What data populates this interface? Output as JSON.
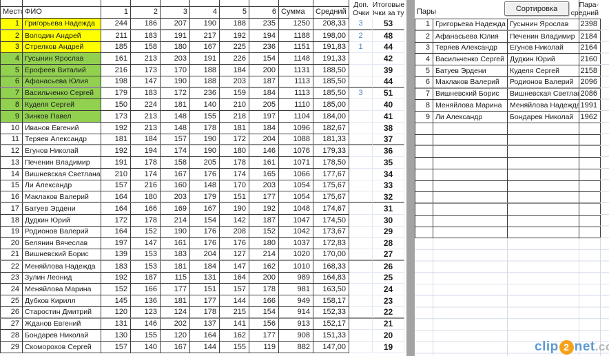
{
  "colors": {
    "highlight_top3": "#ffff00",
    "highlight_top9": "#92d050",
    "bonus_points": "#4f81bd",
    "separator_band": "#a3a3a3",
    "watermark_blue": "#5b9bd5",
    "watermark_orange": "#f7a11a",
    "watermark_gray": "#b5b5b5"
  },
  "left_table": {
    "headers": {
      "place": "Место",
      "name": "ФИО",
      "games": [
        "1",
        "2",
        "3",
        "4",
        "5",
        "6"
      ],
      "sum": "Сумма",
      "avg": "Средний",
      "bonus_line1": "Доп.",
      "bonus_line2": "Очки",
      "total_line1": "Итоговые",
      "total_line2": "Очки за тур"
    },
    "rows": [
      {
        "place": "1",
        "name": "Григорьева Надежда",
        "g": [
          "244",
          "186",
          "207",
          "190",
          "188",
          "235"
        ],
        "sum": "1250",
        "avg": "208,33",
        "dop": "3",
        "total": "53",
        "hl": "top3"
      },
      {
        "place": "2",
        "name": "Володин Андрей",
        "g": [
          "211",
          "183",
          "191",
          "217",
          "192",
          "194"
        ],
        "sum": "1188",
        "avg": "198,00",
        "dop": "2",
        "total": "48",
        "hl": "top3"
      },
      {
        "place": "3",
        "name": "Стрелков Андрей",
        "g": [
          "185",
          "158",
          "180",
          "167",
          "225",
          "236"
        ],
        "sum": "1151",
        "avg": "191,83",
        "dop": "1",
        "total": "44",
        "hl": "top3"
      },
      {
        "place": "4",
        "name": "Гусынин Ярослав",
        "g": [
          "161",
          "213",
          "203",
          "191",
          "226",
          "154"
        ],
        "sum": "1148",
        "avg": "191,33",
        "dop": "",
        "total": "42",
        "hl": "top9"
      },
      {
        "place": "5",
        "name": "Ерофеев Виталий",
        "g": [
          "216",
          "173",
          "170",
          "188",
          "184",
          "200"
        ],
        "sum": "1131",
        "avg": "188,50",
        "dop": "",
        "total": "39",
        "hl": "top9"
      },
      {
        "place": "6",
        "name": "Афанасьева Юлия",
        "g": [
          "198",
          "147",
          "190",
          "188",
          "203",
          "187"
        ],
        "sum": "1113",
        "avg": "185,50",
        "dop": "",
        "total": "44",
        "hl": "top9"
      },
      {
        "place": "7",
        "name": "Васильченко Сергей",
        "g": [
          "179",
          "183",
          "172",
          "236",
          "159",
          "184"
        ],
        "sum": "1113",
        "avg": "185,50",
        "dop": "3",
        "total": "51",
        "hl": "top9"
      },
      {
        "place": "8",
        "name": "Куделя Сергей",
        "g": [
          "150",
          "224",
          "181",
          "140",
          "210",
          "205"
        ],
        "sum": "1110",
        "avg": "185,00",
        "dop": "",
        "total": "40",
        "hl": "top9"
      },
      {
        "place": "9",
        "name": "Зинков Павел",
        "g": [
          "173",
          "213",
          "148",
          "155",
          "218",
          "197"
        ],
        "sum": "1104",
        "avg": "184,00",
        "dop": "",
        "total": "41",
        "hl": "top9"
      },
      {
        "place": "10",
        "name": "Иванов Евгений",
        "g": [
          "192",
          "213",
          "148",
          "178",
          "181",
          "184"
        ],
        "sum": "1096",
        "avg": "182,67",
        "dop": "",
        "total": "38",
        "hl": null
      },
      {
        "place": "11",
        "name": "Теряев Александр",
        "g": [
          "181",
          "184",
          "157",
          "190",
          "172",
          "204"
        ],
        "sum": "1088",
        "avg": "181,33",
        "dop": "",
        "total": "37",
        "hl": null
      },
      {
        "place": "12",
        "name": "Егунов Николай",
        "g": [
          "192",
          "194",
          "174",
          "190",
          "180",
          "146"
        ],
        "sum": "1076",
        "avg": "179,33",
        "dop": "",
        "total": "36",
        "hl": null
      },
      {
        "place": "13",
        "name": "Печенин Владимир",
        "g": [
          "191",
          "178",
          "158",
          "205",
          "178",
          "161"
        ],
        "sum": "1071",
        "avg": "178,50",
        "dop": "",
        "total": "35",
        "hl": null
      },
      {
        "place": "14",
        "name": "Вишневская Светлана",
        "g": [
          "210",
          "174",
          "167",
          "176",
          "174",
          "165"
        ],
        "sum": "1066",
        "avg": "177,67",
        "dop": "",
        "total": "34",
        "hl": null
      },
      {
        "place": "15",
        "name": "Ли Александр",
        "g": [
          "157",
          "216",
          "160",
          "148",
          "170",
          "203"
        ],
        "sum": "1054",
        "avg": "175,67",
        "dop": "",
        "total": "33",
        "hl": null
      },
      {
        "place": "16",
        "name": "Маклаков Валерий",
        "g": [
          "164",
          "180",
          "203",
          "179",
          "151",
          "177"
        ],
        "sum": "1054",
        "avg": "175,67",
        "dop": "",
        "total": "32",
        "hl": null
      },
      {
        "place": "17",
        "name": "Батуев Эрдени",
        "g": [
          "164",
          "166",
          "169",
          "167",
          "190",
          "192"
        ],
        "sum": "1048",
        "avg": "174,67",
        "dop": "",
        "total": "31",
        "hl": null
      },
      {
        "place": "18",
        "name": "Дудкин Юрий",
        "g": [
          "172",
          "178",
          "214",
          "154",
          "142",
          "187"
        ],
        "sum": "1047",
        "avg": "174,50",
        "dop": "",
        "total": "30",
        "hl": null
      },
      {
        "place": "19",
        "name": "Родионов Валерий",
        "g": [
          "164",
          "152",
          "190",
          "176",
          "208",
          "152"
        ],
        "sum": "1042",
        "avg": "173,67",
        "dop": "",
        "total": "29",
        "hl": null
      },
      {
        "place": "20",
        "name": "Белянин Вячеслав",
        "g": [
          "197",
          "147",
          "161",
          "176",
          "176",
          "180"
        ],
        "sum": "1037",
        "avg": "172,83",
        "dop": "",
        "total": "28",
        "hl": null
      },
      {
        "place": "21",
        "name": "Вишневский Борис",
        "g": [
          "139",
          "153",
          "183",
          "204",
          "127",
          "214"
        ],
        "sum": "1020",
        "avg": "170,00",
        "dop": "",
        "total": "27",
        "hl": null
      },
      {
        "place": "22",
        "name": "Меняйлова Надежда",
        "g": [
          "183",
          "153",
          "181",
          "184",
          "147",
          "162"
        ],
        "sum": "1010",
        "avg": "168,33",
        "dop": "",
        "total": "26",
        "hl": null
      },
      {
        "place": "23",
        "name": "Зулин Леонид",
        "g": [
          "192",
          "187",
          "115",
          "131",
          "164",
          "200"
        ],
        "sum": "989",
        "avg": "164,83",
        "dop": "",
        "total": "25",
        "hl": null
      },
      {
        "place": "24",
        "name": "Меняйлова Марина",
        "g": [
          "152",
          "166",
          "177",
          "151",
          "157",
          "178"
        ],
        "sum": "981",
        "avg": "163,50",
        "dop": "",
        "total": "24",
        "hl": null
      },
      {
        "place": "25",
        "name": "Дубков Кирилл",
        "g": [
          "145",
          "136",
          "181",
          "177",
          "144",
          "166"
        ],
        "sum": "949",
        "avg": "158,17",
        "dop": "",
        "total": "23",
        "hl": null
      },
      {
        "place": "26",
        "name": "Старостин Дмитрий",
        "g": [
          "120",
          "123",
          "124",
          "178",
          "215",
          "154"
        ],
        "sum": "914",
        "avg": "152,33",
        "dop": "",
        "total": "22",
        "hl": null
      },
      {
        "place": "27",
        "name": "Жданов Евгений",
        "g": [
          "131",
          "146",
          "202",
          "137",
          "141",
          "156"
        ],
        "sum": "913",
        "avg": "152,17",
        "dop": "",
        "total": "21",
        "hl": null
      },
      {
        "place": "28",
        "name": "Бондарев Николай",
        "g": [
          "130",
          "155",
          "120",
          "164",
          "162",
          "177"
        ],
        "sum": "908",
        "avg": "151,33",
        "dop": "",
        "total": "20",
        "hl": null
      },
      {
        "place": "29",
        "name": "Скоморохов Сергей",
        "g": [
          "157",
          "140",
          "167",
          "144",
          "155",
          "119"
        ],
        "sum": "882",
        "avg": "147,00",
        "dop": "",
        "total": "19",
        "hl": null
      }
    ]
  },
  "right_table": {
    "header": {
      "pairs_label": "Пары",
      "sort_button_label": "Сортировка",
      "avg_line1": "Пара-",
      "avg_line2": "средний"
    },
    "rows": [
      {
        "num": "1",
        "p1": "Григорьева Надежда",
        "p2": "Гусынин Ярослав",
        "avg": "2398"
      },
      {
        "num": "2",
        "p1": "Афанасьева Юлия",
        "p2": "Печенин Владимир",
        "avg": "2184"
      },
      {
        "num": "3",
        "p1": "Теряев Александр",
        "p2": "Егунов Николай",
        "avg": "2164"
      },
      {
        "num": "4",
        "p1": "Васильченко Сергей",
        "p2": "Дудкин Юрий",
        "avg": "2160"
      },
      {
        "num": "5",
        "p1": "Батуев Эрдени",
        "p2": "Куделя Сергей",
        "avg": "2158"
      },
      {
        "num": "6",
        "p1": "Маклаков Валерий",
        "p2": "Родионов Валерий",
        "avg": "2096"
      },
      {
        "num": "7",
        "p1": "Вишневский Борис",
        "p2": "Вишневская Светлана",
        "avg": "2086"
      },
      {
        "num": "8",
        "p1": "Меняйлова Марина",
        "p2": "Меняйлова Надежда",
        "avg": "1991"
      },
      {
        "num": "9",
        "p1": "Ли Александр",
        "p2": "Бондарев Николай",
        "avg": "1962"
      }
    ],
    "empty_row_count": 10
  },
  "watermark": {
    "part1": "clip",
    "part2": "2",
    "part3": "net",
    "part4": ".com"
  }
}
